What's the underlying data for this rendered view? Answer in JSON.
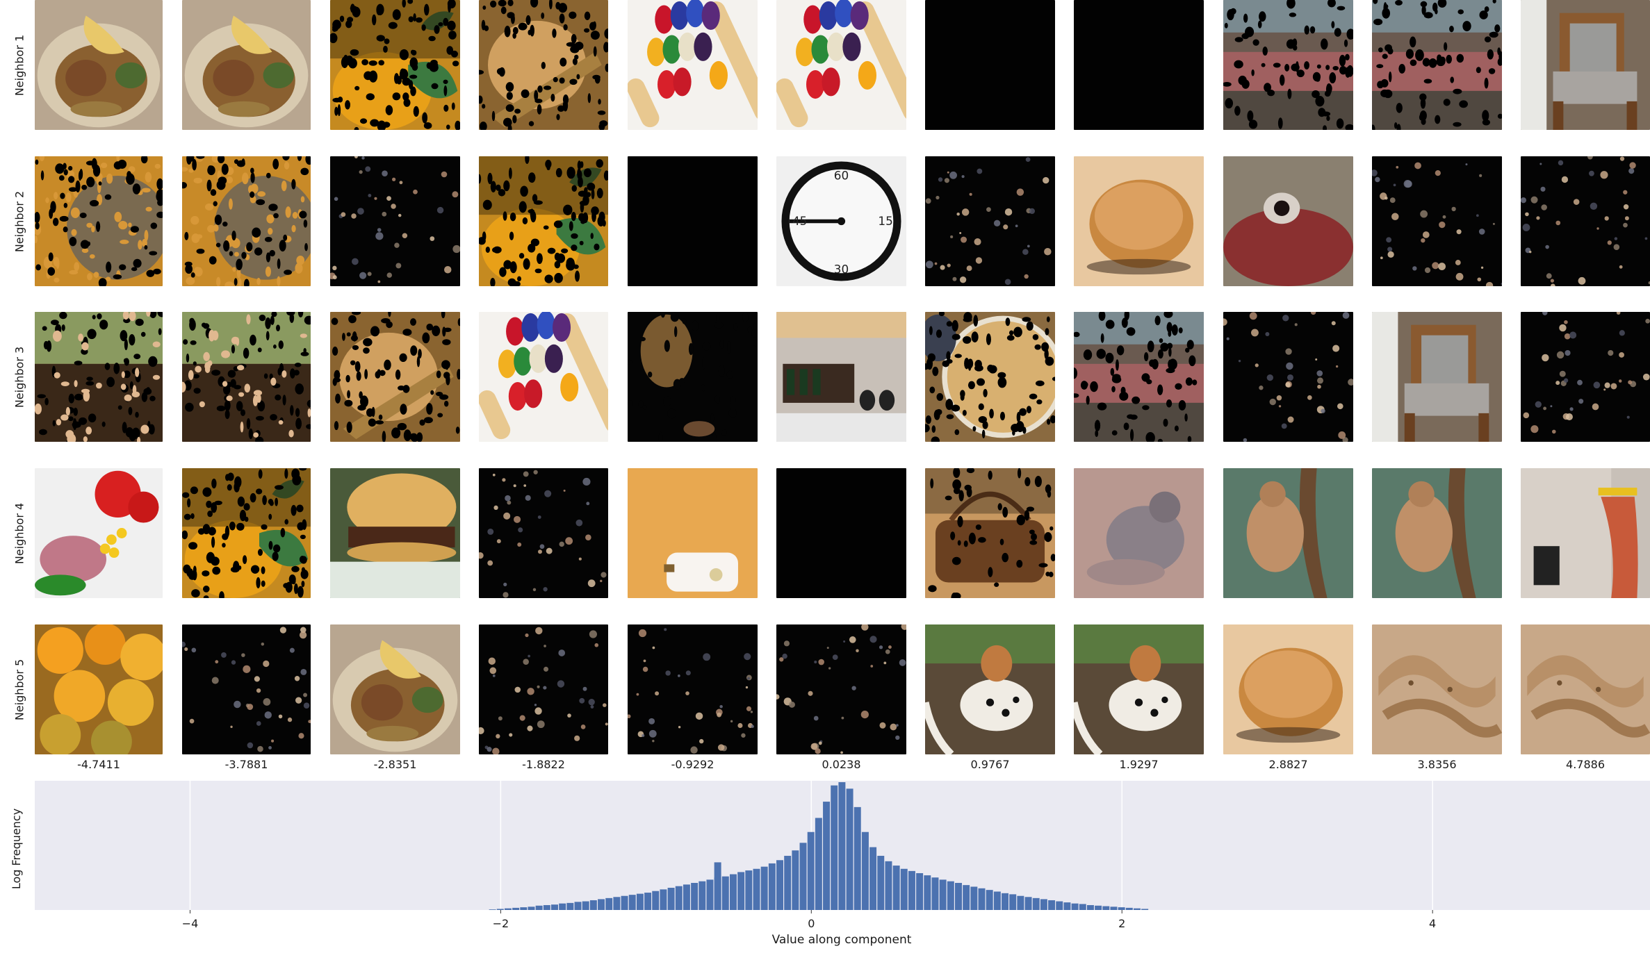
{
  "row_labels": [
    "Neighbor 1",
    "Neighbor 2",
    "Neighbor 3",
    "Neighbor 4",
    "Neighbor 5"
  ],
  "column_values": [
    "-4.7411",
    "-3.7881",
    "-2.8351",
    "-1.8822",
    "-0.9292",
    "0.0238",
    "0.9767",
    "1.9297",
    "2.8827",
    "3.8356",
    "4.7886"
  ],
  "thumbnails": [
    [
      "food-plate",
      "food-plate",
      "dotted-citrus",
      "dotted-owl",
      "abacus",
      "abacus",
      "black",
      "black",
      "dotted-market",
      "dotted-market",
      "armchair"
    ],
    [
      "dotted-bees",
      "dotted-bees",
      "dark-sparse",
      "dotted-citrus",
      "black",
      "clock",
      "dark-sparse",
      "bread-roll",
      "mouth-closeup",
      "dark-sparse",
      "dark-sparse"
    ],
    [
      "dotted-grass",
      "dotted-grass",
      "dotted-owl",
      "abacus",
      "dark-basket",
      "bottles-shelf",
      "dotted-bowl",
      "dotted-market",
      "dark-sparse",
      "armchair",
      "dark-sparse"
    ],
    [
      "salad-tomato",
      "dotted-citrus",
      "burger",
      "dark-sparse",
      "toilet-paper",
      "black",
      "dotted-handbag",
      "koala-blur",
      "monkey-tree",
      "monkey-tree",
      "kitchen-mop"
    ],
    [
      "oranges",
      "dark-sparse",
      "food-plate",
      "dark-sparse",
      "dark-sparse",
      "dark-sparse",
      "dog-dalmatian",
      "dog-dalmatian",
      "bread-roll",
      "snake-sand",
      "snake-sand"
    ]
  ],
  "chart_data": {
    "type": "bar",
    "xlabel": "Value along component",
    "ylabel": "Log Frequency",
    "xlim": [
      -5.0,
      5.4
    ],
    "x_ticks": [
      -4,
      -2,
      0,
      2,
      4
    ],
    "x_tick_labels": [
      "−4",
      "−2",
      "0",
      "2",
      "4"
    ],
    "grid": true,
    "bar_color": "#4c72b0",
    "background_color": "#eaeaf2",
    "bin_width": 0.05,
    "x": [
      -2.05,
      -2.0,
      -1.95,
      -1.9,
      -1.85,
      -1.8,
      -1.75,
      -1.7,
      -1.65,
      -1.6,
      -1.55,
      -1.5,
      -1.45,
      -1.4,
      -1.35,
      -1.3,
      -1.25,
      -1.2,
      -1.15,
      -1.1,
      -1.05,
      -1.0,
      -0.95,
      -0.9,
      -0.85,
      -0.8,
      -0.75,
      -0.7,
      -0.65,
      -0.6,
      -0.55,
      -0.5,
      -0.45,
      -0.4,
      -0.35,
      -0.3,
      -0.25,
      -0.2,
      -0.15,
      -0.1,
      -0.05,
      0.0,
      0.05,
      0.1,
      0.15,
      0.2,
      0.25,
      0.3,
      0.35,
      0.4,
      0.45,
      0.5,
      0.55,
      0.6,
      0.65,
      0.7,
      0.75,
      0.8,
      0.85,
      0.9,
      0.95,
      1.0,
      1.05,
      1.1,
      1.15,
      1.2,
      1.25,
      1.3,
      1.35,
      1.4,
      1.45,
      1.5,
      1.55,
      1.6,
      1.65,
      1.7,
      1.75,
      1.8,
      1.85,
      1.9,
      1.95,
      2.0,
      2.05,
      2.1,
      2.15
    ],
    "values": [
      0.5,
      1,
      1.5,
      2,
      2.5,
      3,
      4,
      4.5,
      5,
      6,
      6.5,
      7.5,
      8,
      9,
      10,
      11,
      12,
      13,
      14,
      15,
      16,
      17.5,
      19,
      20.5,
      22,
      23.5,
      25,
      26.5,
      28,
      30,
      31,
      33,
      35,
      36.5,
      38,
      40,
      43,
      46,
      50,
      55,
      62,
      72,
      85,
      100,
      115,
      118,
      112,
      95,
      72,
      58,
      50,
      45,
      41,
      38,
      36,
      34,
      32,
      30,
      28,
      26.5,
      25,
      23,
      21.5,
      20,
      18.5,
      17,
      15.5,
      14.5,
      13,
      12,
      11,
      10,
      9,
      8,
      7,
      6,
      5.5,
      4.5,
      4,
      3.5,
      3,
      2.5,
      2,
      1.5,
      1
    ],
    "spike": {
      "x": -0.6,
      "value": 44
    }
  }
}
